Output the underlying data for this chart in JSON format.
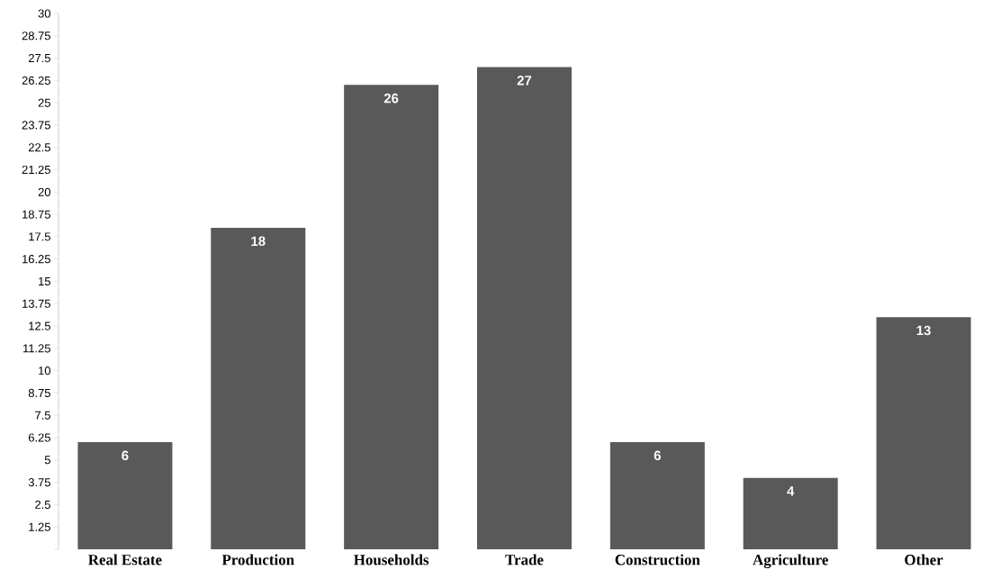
{
  "chart_data": {
    "type": "bar",
    "categories": [
      "Real Estate",
      "Production",
      "Households",
      "Trade",
      "Construction",
      "Agriculture",
      "Other"
    ],
    "values": [
      6,
      18,
      26,
      27,
      6,
      4,
      13
    ],
    "color": "#595959",
    "data_labels": true,
    "ylim": [
      0,
      30
    ],
    "yticks": [
      {
        "value": 0,
        "label": null
      },
      1.25,
      2.5,
      3.75,
      5,
      6.25,
      7.5,
      8.75,
      10,
      11.25,
      12.5,
      13.75,
      15,
      16.25,
      17.5,
      18.75,
      20,
      21.25,
      22.5,
      23.75,
      25,
      26.25,
      27.5,
      28.75,
      30
    ],
    "grid": false
  }
}
